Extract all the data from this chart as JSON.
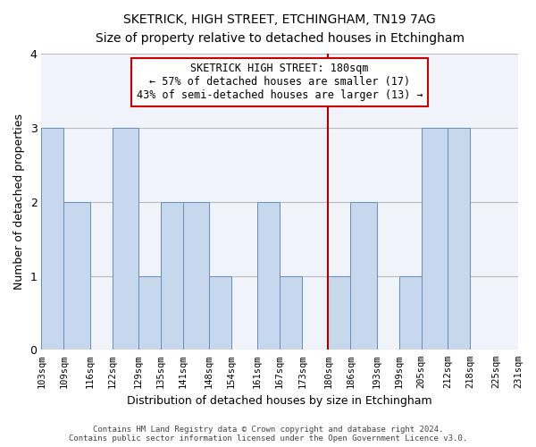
{
  "title": "SKETRICK, HIGH STREET, ETCHINGHAM, TN19 7AG",
  "subtitle": "Size of property relative to detached houses in Etchingham",
  "xlabel": "Distribution of detached houses by size in Etchingham",
  "ylabel": "Number of detached properties",
  "bins": [
    103,
    109,
    116,
    122,
    129,
    135,
    141,
    148,
    154,
    161,
    167,
    173,
    180,
    186,
    193,
    199,
    205,
    212,
    218,
    225,
    231
  ],
  "counts": [
    3,
    2,
    0,
    3,
    1,
    2,
    2,
    1,
    0,
    2,
    1,
    0,
    1,
    2,
    0,
    1,
    3,
    3,
    0,
    0
  ],
  "bar_color": "#c8d8ec",
  "bar_edge_color": "#6090c0",
  "bar_edge_width": 0.7,
  "grid_color": "#bbbbbb",
  "marker_value": 180,
  "marker_color": "#aa0000",
  "annotation_title": "SKETRICK HIGH STREET: 180sqm",
  "annotation_line1": "← 57% of detached houses are smaller (17)",
  "annotation_line2": "43% of semi-detached houses are larger (13) →",
  "annotation_box_color": "#ffffff",
  "annotation_box_edge": "#cc0000",
  "footer_line1": "Contains HM Land Registry data © Crown copyright and database right 2024.",
  "footer_line2": "Contains public sector information licensed under the Open Government Licence v3.0.",
  "ylim": [
    0,
    4
  ],
  "yticks": [
    0,
    1,
    2,
    3,
    4
  ],
  "bg_color": "#ffffff",
  "plot_bg_color": "#f0f4fa"
}
